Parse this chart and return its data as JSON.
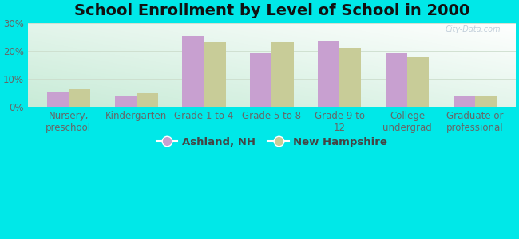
{
  "title": "School Enrollment by Level of School in 2000",
  "categories": [
    "Nursery,\npreschool",
    "Kindergarten",
    "Grade 1 to 4",
    "Grade 5 to 8",
    "Grade 9 to\n12",
    "College\nundergrad",
    "Graduate or\nprofessional"
  ],
  "ashland_values": [
    5.0,
    3.8,
    25.5,
    19.2,
    23.5,
    19.4,
    3.8
  ],
  "nh_values": [
    6.2,
    4.8,
    23.2,
    23.1,
    21.1,
    18.0,
    4.0
  ],
  "ashland_color": "#c8a0d0",
  "nh_color": "#c8cc98",
  "background_outer": "#00e8e8",
  "background_inner_topleft": "#e8f5e8",
  "background_inner_bottomright": "#ffffff",
  "ylim": [
    0,
    30
  ],
  "yticks": [
    0,
    10,
    20,
    30
  ],
  "ytick_labels": [
    "0%",
    "10%",
    "20%",
    "30%"
  ],
  "legend_ashland": "Ashland, NH",
  "legend_nh": "New Hampshire",
  "watermark": "City-Data.com",
  "title_fontsize": 14,
  "tick_fontsize": 8.5,
  "legend_fontsize": 9.5,
  "bar_width": 0.32
}
